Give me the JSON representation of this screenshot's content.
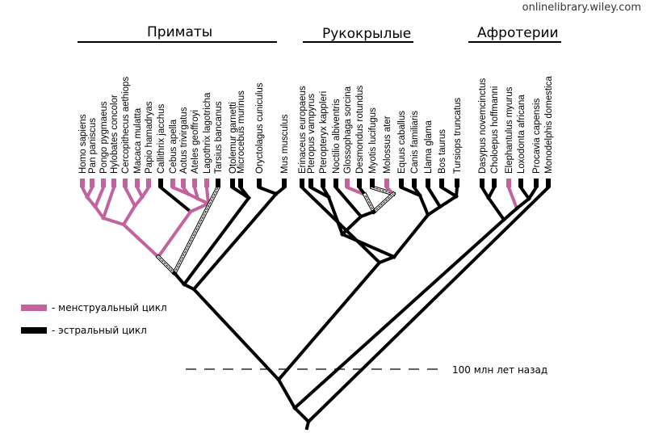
{
  "source": "onlinelibrary.wiley.com",
  "colors": {
    "menstrual": "#c2639f",
    "estrous": "#000000",
    "hatch": "#888888"
  },
  "groups": [
    {
      "name": "Приматы"
    },
    {
      "name": "Рукокрылые"
    },
    {
      "name": "Афротерии"
    }
  ],
  "taxa": [
    {
      "name": "Homo sapiens",
      "state": "menstrual"
    },
    {
      "name": "Pan paniscus",
      "state": "menstrual"
    },
    {
      "name": "Pongo pygmaeus",
      "state": "menstrual"
    },
    {
      "name": "Hylobates concolor",
      "state": "menstrual"
    },
    {
      "name": "Cercopithecus aethiops",
      "state": "menstrual"
    },
    {
      "name": "Macaca mulatta",
      "state": "menstrual"
    },
    {
      "name": "Papio hamadryas",
      "state": "menstrual"
    },
    {
      "name": "Callithrix jacchus",
      "state": "estrous"
    },
    {
      "name": "Cebus apella",
      "state": "menstrual"
    },
    {
      "name": "Aotus trivirgatus",
      "state": "menstrual"
    },
    {
      "name": "Ateles geoffroyi",
      "state": "menstrual"
    },
    {
      "name": "Lagothrix lagotricha",
      "state": "menstrual"
    },
    {
      "name": "Tarsius bancanus",
      "state": "equivocal"
    },
    {
      "name": "Otolemur garnetti",
      "state": "estrous"
    },
    {
      "name": "Microcebus murinus",
      "state": "estrous"
    },
    {
      "name": "Oryctolagus cuniculus",
      "state": "estrous"
    },
    {
      "name": "Mus musculus",
      "state": "estrous"
    },
    {
      "name": "Erinaceus europaeus",
      "state": "estrous"
    },
    {
      "name": "Pteropus vampyrus",
      "state": "estrous"
    },
    {
      "name": "Pteropteryx kappleri",
      "state": "estrous"
    },
    {
      "name": "Noctilio albiventris",
      "state": "estrous"
    },
    {
      "name": "Glossophaga sorcina",
      "state": "menstrual"
    },
    {
      "name": "Desmondus rotundus",
      "state": "estrous"
    },
    {
      "name": "Myotis lucifugus",
      "state": "estrous"
    },
    {
      "name": "Molossus ater",
      "state": "menstrual"
    },
    {
      "name": "Equus caballus",
      "state": "estrous"
    },
    {
      "name": "Canis familiaris",
      "state": "estrous"
    },
    {
      "name": "Llama glama",
      "state": "estrous"
    },
    {
      "name": "Bos taurus",
      "state": "estrous"
    },
    {
      "name": "Tursiops truncatus",
      "state": "estrous"
    },
    {
      "name": "Dasypus novemcinctus",
      "state": "estrous"
    },
    {
      "name": "Choloepus hoffmanni",
      "state": "estrous"
    },
    {
      "name": "Elephantulus myurus",
      "state": "menstrual"
    },
    {
      "name": "Loxodonta africana",
      "state": "estrous"
    },
    {
      "name": "Procavia capensis",
      "state": "estrous"
    },
    {
      "name": "Monodelphis domestica",
      "state": "estrous"
    }
  ],
  "legend": [
    {
      "label": "- менструальный цикл",
      "color_key": "menstrual"
    },
    {
      "label": "- эстральный цикл",
      "color_key": "estrous"
    }
  ],
  "time_marker": {
    "label": "100 млн лет назад"
  }
}
